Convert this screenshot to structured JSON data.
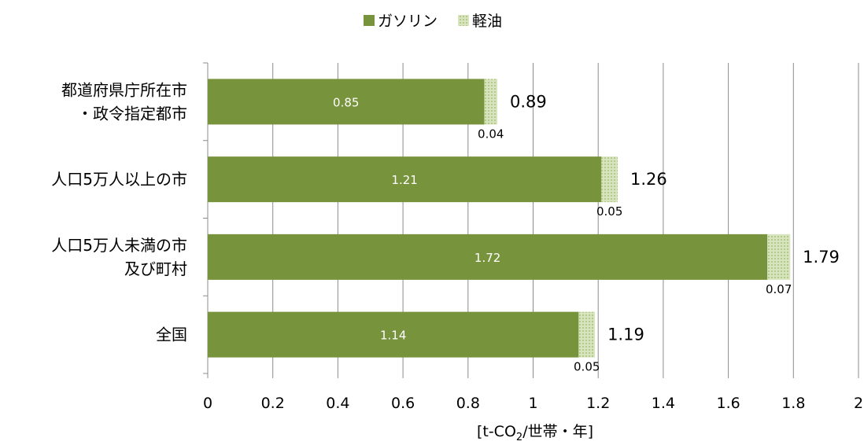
{
  "chart_data": {
    "type": "bar",
    "orientation": "horizontal",
    "stacked": true,
    "categories": [
      [
        "都道府県庁所在市",
        "・政令指定都市"
      ],
      [
        "人口5万人以上の市"
      ],
      [
        "人口5万人未満の市",
        "及び町村"
      ],
      [
        "全国"
      ]
    ],
    "series": [
      {
        "name": "ガソリン",
        "values": [
          0.85,
          1.21,
          1.72,
          1.14
        ],
        "color": "#77933c",
        "pattern": "solid"
      },
      {
        "name": "軽油",
        "values": [
          0.04,
          0.05,
          0.07,
          0.05
        ],
        "color": "#c3d69b",
        "pattern": "dotted"
      }
    ],
    "value_labels": {
      "ガソリン": [
        "0.85",
        "1.21",
        "1.72",
        "1.14"
      ],
      "軽油": [
        "0.04",
        "0.05",
        "0.07",
        "0.05"
      ]
    },
    "totals": [
      "0.89",
      "1.26",
      "1.79",
      "1.19"
    ],
    "xlim": [
      0,
      2
    ],
    "x_ticks": [
      "0",
      "0.2",
      "0.4",
      "0.6",
      "0.8",
      "1",
      "1.2",
      "1.4",
      "1.6",
      "1.8",
      "2"
    ],
    "xlabel": {
      "prefix": "[t-CO",
      "subscript": "2",
      "suffix": "/世帯・年]"
    },
    "grid": "vertical",
    "legend_position": "top"
  }
}
